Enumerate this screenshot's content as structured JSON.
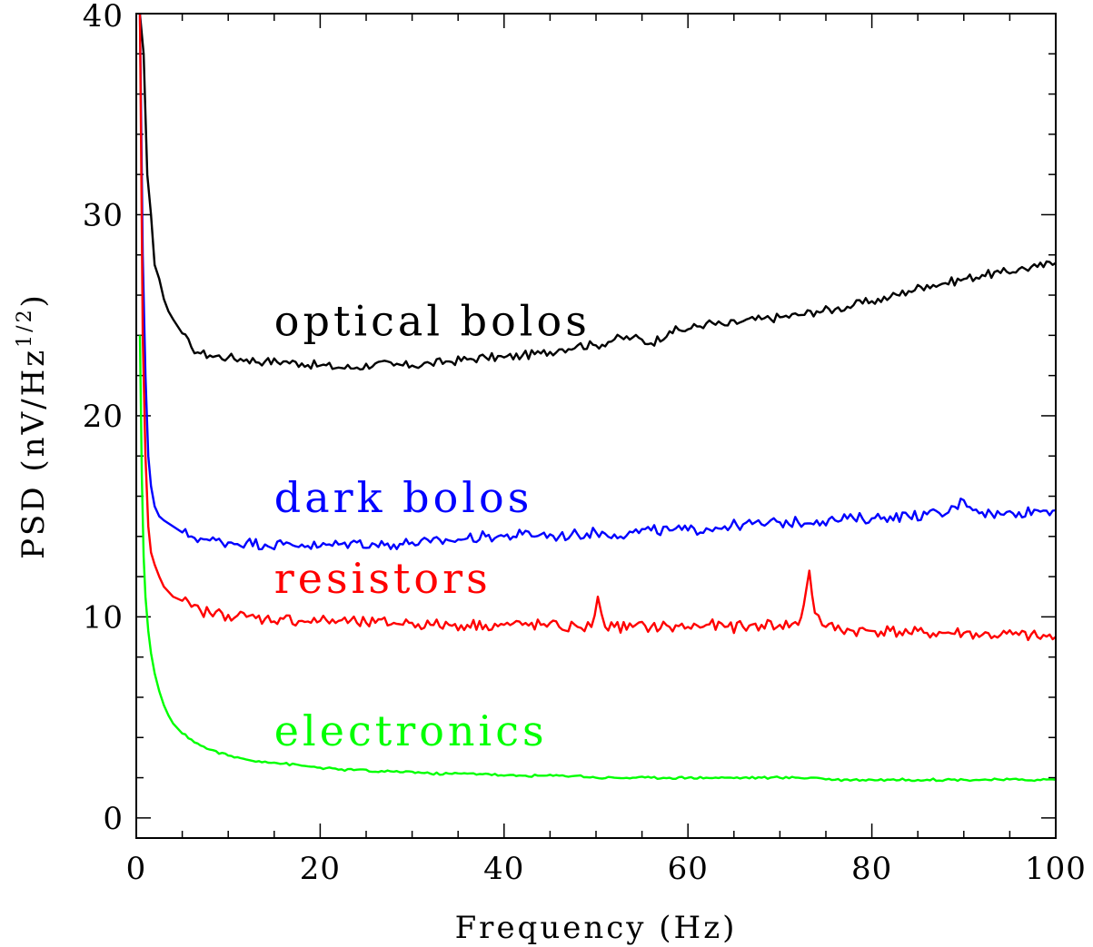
{
  "chart_data": {
    "type": "line",
    "xlabel": "Frequency (Hz)",
    "ylabel_main": "PSD (nV/Hz",
    "ylabel_sup": "1/2",
    "ylabel_close": ")",
    "xlim": [
      0,
      100
    ],
    "ylim": [
      -1,
      40
    ],
    "x_ticks": [
      0,
      20,
      40,
      60,
      80,
      100
    ],
    "x_tick_labels": [
      "0",
      "20",
      "40",
      "60",
      "80",
      "100"
    ],
    "y_ticks": [
      0,
      10,
      20,
      30,
      40
    ],
    "y_tick_labels": [
      "0",
      "10",
      "20",
      "30",
      "40"
    ],
    "x_minor_step": 5,
    "y_minor_step": 2,
    "grid": false,
    "legend": "inline labels",
    "series": [
      {
        "name": "optical bolos",
        "color": "#000000",
        "label_anchor": [
          15,
          24
        ],
        "x": [
          0.4,
          0.8,
          1.2,
          1.6,
          2.0,
          2.5,
          3.0,
          3.5,
          4,
          5,
          6,
          7,
          8,
          10,
          12,
          14,
          16,
          18,
          20,
          22,
          24,
          26,
          28,
          30,
          32,
          34,
          36,
          38,
          40,
          42,
          44,
          46,
          48,
          50,
          52,
          54,
          56,
          58,
          60,
          62,
          64,
          66,
          68,
          70,
          72,
          74,
          76,
          78,
          80,
          82,
          84,
          86,
          88,
          90,
          92,
          94,
          96,
          98,
          100
        ],
        "y": [
          40,
          38,
          32,
          30,
          27.5,
          26.8,
          25.8,
          25.2,
          24.8,
          24.1,
          23.4,
          23.1,
          23.0,
          22.9,
          22.8,
          22.7,
          22.7,
          22.6,
          22.5,
          22.4,
          22.4,
          22.6,
          22.5,
          22.5,
          22.6,
          22.7,
          22.8,
          22.9,
          22.9,
          23.0,
          23.1,
          23.3,
          23.5,
          23.5,
          23.8,
          23.9,
          23.6,
          24.2,
          24.3,
          24.6,
          24.5,
          24.7,
          24.8,
          24.9,
          25.0,
          25.2,
          25.3,
          25.5,
          25.7,
          25.9,
          26.2,
          26.5,
          26.6,
          26.8,
          27.0,
          27.1,
          27.3,
          27.4,
          27.6
        ]
      },
      {
        "name": "dark bolos",
        "color": "#0000ff",
        "label_anchor": [
          15,
          15.2
        ],
        "x": [
          0.4,
          0.7,
          1.0,
          1.3,
          1.6,
          2.0,
          2.5,
          3,
          4,
          5,
          6,
          7,
          8,
          10,
          12,
          14,
          16,
          18,
          20,
          22,
          24,
          26,
          28,
          30,
          32,
          34,
          36,
          38,
          40,
          42,
          44,
          46,
          48,
          50,
          52,
          54,
          56,
          58,
          60,
          62,
          64,
          66,
          68,
          70,
          72,
          74,
          76,
          78,
          80,
          82,
          84,
          86,
          88,
          90,
          92,
          94,
          96,
          98,
          100
        ],
        "y": [
          40,
          28,
          22,
          18,
          16.5,
          15.5,
          15.0,
          14.8,
          14.5,
          14.2,
          14.0,
          13.9,
          13.8,
          13.7,
          13.7,
          13.6,
          13.6,
          13.6,
          13.5,
          13.6,
          13.7,
          13.6,
          13.6,
          13.7,
          13.7,
          13.8,
          13.9,
          14.0,
          14.0,
          14.1,
          14.1,
          14.0,
          14.1,
          14.2,
          14.1,
          14.2,
          14.3,
          14.3,
          14.3,
          14.4,
          14.5,
          14.6,
          14.6,
          14.7,
          14.7,
          14.8,
          14.8,
          14.9,
          14.9,
          15.0,
          15.0,
          15.1,
          15.1,
          15.8,
          15.2,
          15.1,
          15.2,
          15.3,
          15.3
        ]
      },
      {
        "name": "resistors",
        "color": "#ff0000",
        "label_anchor": [
          15,
          11.2
        ],
        "x": [
          0.4,
          0.7,
          1.0,
          1.3,
          1.6,
          2.0,
          2.5,
          3,
          4,
          5,
          6,
          7,
          8,
          10,
          12,
          14,
          16,
          18,
          20,
          22,
          24,
          26,
          28,
          30,
          32,
          34,
          36,
          38,
          40,
          42,
          44,
          46,
          48,
          49.5,
          50.2,
          51,
          52,
          54,
          56,
          58,
          60,
          62,
          64,
          66,
          68,
          70,
          72,
          72.6,
          73.2,
          73.8,
          75,
          78,
          80,
          82,
          84,
          86,
          88,
          90,
          92,
          94,
          96,
          98,
          100
        ],
        "y": [
          40,
          24,
          18,
          14.5,
          13.2,
          12.6,
          12.0,
          11.5,
          11.0,
          10.8,
          10.5,
          10.3,
          10.2,
          10.1,
          10.0,
          9.9,
          9.9,
          9.8,
          9.8,
          9.8,
          9.7,
          9.7,
          9.7,
          9.7,
          9.6,
          9.6,
          9.6,
          9.6,
          9.6,
          9.6,
          9.6,
          9.5,
          9.5,
          9.5,
          11.0,
          9.5,
          9.5,
          9.5,
          9.5,
          9.5,
          9.5,
          9.6,
          9.5,
          9.5,
          9.6,
          9.6,
          9.6,
          10.6,
          12.3,
          10.2,
          9.5,
          9.3,
          9.3,
          9.3,
          9.2,
          9.2,
          9.2,
          9.2,
          9.1,
          9.1,
          9.1,
          9.0,
          9.0
        ]
      },
      {
        "name": "electronics",
        "color": "#00ff00",
        "label_anchor": [
          15,
          3.6
        ],
        "x": [
          0.4,
          0.6,
          0.8,
          1.0,
          1.3,
          1.6,
          2.0,
          2.5,
          3,
          3.5,
          4,
          5,
          6,
          7,
          8,
          10,
          12,
          14,
          16,
          18,
          20,
          22,
          24,
          26,
          28,
          30,
          32,
          34,
          36,
          38,
          40,
          42,
          44,
          46,
          48,
          50,
          52,
          54,
          56,
          58,
          60,
          62,
          64,
          66,
          68,
          70,
          72,
          74,
          76,
          78,
          80,
          82,
          84,
          86,
          88,
          90,
          92,
          94,
          96,
          98,
          100
        ],
        "y": [
          24,
          17,
          13,
          11,
          9.3,
          8.2,
          7.2,
          6.3,
          5.6,
          5.1,
          4.7,
          4.2,
          3.9,
          3.6,
          3.4,
          3.1,
          2.9,
          2.8,
          2.7,
          2.6,
          2.5,
          2.4,
          2.4,
          2.3,
          2.3,
          2.3,
          2.2,
          2.2,
          2.2,
          2.2,
          2.1,
          2.1,
          2.1,
          2.1,
          2.1,
          2.0,
          2.0,
          2.0,
          2.0,
          2.0,
          2.0,
          2.0,
          2.0,
          2.0,
          2.0,
          2.0,
          2.0,
          2.0,
          1.9,
          1.9,
          1.9,
          1.9,
          1.9,
          1.9,
          1.9,
          1.9,
          1.9,
          1.9,
          1.9,
          1.9,
          1.9
        ]
      }
    ]
  }
}
